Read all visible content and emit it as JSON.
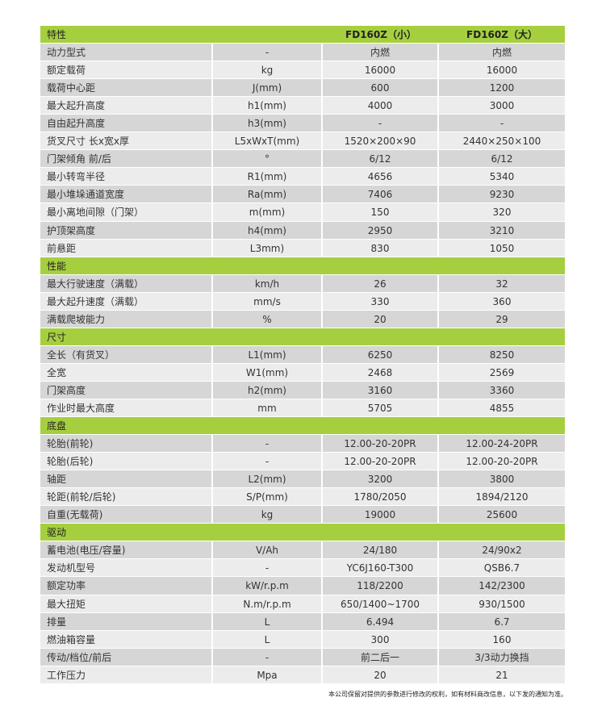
{
  "colors": {
    "section": "#a6cf3f",
    "row_dark": "#d6d6d6",
    "row_light": "#ececec"
  },
  "header": {
    "label": "特性",
    "unit": "",
    "a": "FD160Z（小）",
    "b": "FD160Z（大）"
  },
  "sections": [
    {
      "title": null,
      "rows": [
        [
          "动力型式",
          "-",
          "内燃",
          "内燃"
        ],
        [
          "额定载荷",
          "kg",
          "16000",
          "16000"
        ],
        [
          "载荷中心距",
          "J(mm)",
          "600",
          "1200"
        ],
        [
          "最大起升高度",
          "h1(mm)",
          "4000",
          "3000"
        ],
        [
          "自由起升高度",
          "h3(mm)",
          "-",
          "-"
        ],
        [
          "货叉尺寸 长x宽x厚",
          "L5xWxT(mm)",
          "1520×200×90",
          "2440×250×100"
        ],
        [
          "门架倾角 前/后",
          "°",
          "6/12",
          "6/12"
        ],
        [
          "最小转弯半径",
          "R1(mm)",
          "4656",
          "5340"
        ],
        [
          "最小堆垛通道宽度",
          "Ra(mm)",
          "7406",
          "9230"
        ],
        [
          "最小离地间隙（门架）",
          "m(mm)",
          "150",
          "320"
        ],
        [
          "护顶架高度",
          "h4(mm)",
          "2950",
          "3210"
        ],
        [
          "前悬距",
          "L3mm)",
          "830",
          "1050"
        ]
      ]
    },
    {
      "title": "性能",
      "rows": [
        [
          "最大行驶速度（满载）",
          "km/h",
          "26",
          "32"
        ],
        [
          "最大起升速度（满载）",
          "mm/s",
          "330",
          "360"
        ],
        [
          "满载爬坡能力",
          "%",
          "20",
          "29"
        ]
      ]
    },
    {
      "title": "尺寸",
      "rows": [
        [
          "全长（有货叉）",
          "L1(mm)",
          "6250",
          "8250"
        ],
        [
          "全宽",
          "W1(mm)",
          "2468",
          "2569"
        ],
        [
          "门架高度",
          "h2(mm)",
          "3160",
          "3360"
        ],
        [
          "作业时最大高度",
          "mm",
          "5705",
          "4855"
        ]
      ]
    },
    {
      "title": "底盘",
      "rows": [
        [
          "轮胎(前轮)",
          "-",
          "12.00-20-20PR",
          "12.00-24-20PR"
        ],
        [
          "轮胎(后轮)",
          "-",
          "12.00-20-20PR",
          "12.00-20-20PR"
        ],
        [
          "轴距",
          "L2(mm)",
          "3200",
          "3800"
        ],
        [
          "轮距(前轮/后轮)",
          "S/P(mm)",
          "1780/2050",
          "1894/2120"
        ],
        [
          "自重(无载荷)",
          "kg",
          "19000",
          "25600"
        ]
      ]
    },
    {
      "title": "驱动",
      "rows": [
        [
          "蓄电池(电压/容量)",
          "V/Ah",
          "24/180",
          "24/90x2"
        ],
        [
          "发动机型号",
          "-",
          "YC6J160-T300",
          "QSB6.7"
        ],
        [
          "额定功率",
          "kW/r.p.m",
          "118/2200",
          "142/2300"
        ],
        [
          "最大扭矩",
          "N.m/r.p.m",
          "650/1400~1700",
          "930/1500"
        ],
        [
          "排量",
          "L",
          "6.494",
          "6.7"
        ],
        [
          "燃油箱容量",
          "L",
          "300",
          "160"
        ],
        [
          "传动/档位/前后",
          "-",
          "前二后一",
          "3/3动力换挡"
        ],
        [
          "工作压力",
          "Mpa",
          "20",
          "21"
        ]
      ]
    }
  ],
  "footnote": "本公司保留对提供的参数进行修改的权利，如有材料商改信息，以下发的通知为准。"
}
